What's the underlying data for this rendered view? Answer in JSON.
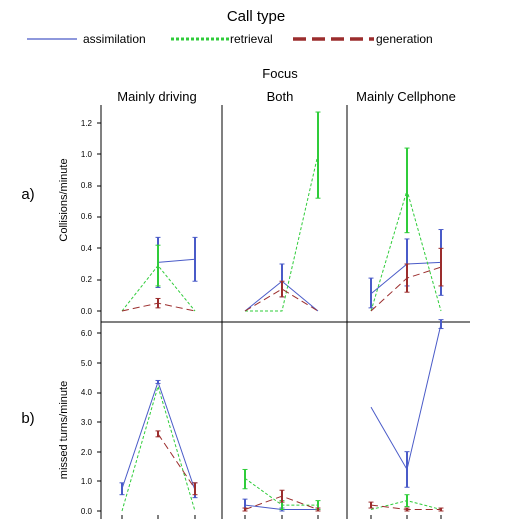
{
  "legend": {
    "title": "Call type",
    "items": [
      {
        "label": "assimilation",
        "color": "#4a5bc8",
        "style": "solid"
      },
      {
        "label": "retrieval",
        "color": "#2fcc3a",
        "style": "dotted"
      },
      {
        "label": "generation",
        "color": "#9b2d2d",
        "style": "dashed"
      }
    ]
  },
  "facet": {
    "title": "Focus",
    "columns": [
      "Mainly driving",
      "Both",
      "Mainly Cellphone"
    ]
  },
  "rows": [
    {
      "letter": "a)",
      "ylabel": "Collisions/minute",
      "ticks": [
        "0.0",
        "0.2",
        "0.4",
        "0.6",
        "0.8",
        "1.0",
        "1.2"
      ]
    },
    {
      "letter": "b)",
      "ylabel": "missed turns/minute",
      "ticks": [
        "0.0",
        "1.0",
        "2.0",
        "3.0",
        "4.0",
        "5.0",
        "6.0"
      ]
    }
  ],
  "chart_data": [
    {
      "type": "line",
      "title": "Collisions/minute",
      "ylabel": "Collisions/minute",
      "ylim": [
        0,
        1.3
      ],
      "facets": [
        "Mainly driving",
        "Both",
        "Mainly Cellphone"
      ],
      "panels": [
        {
          "facet": "Mainly driving",
          "series": [
            {
              "name": "assimilation",
              "values": [
                null,
                0.31,
                0.33
              ],
              "lo": [
                null,
                0.15,
                0.19
              ],
              "hi": [
                null,
                0.47,
                0.47
              ]
            },
            {
              "name": "retrieval",
              "values": [
                0.0,
                0.29,
                0.0
              ],
              "lo": [
                null,
                0.16,
                null
              ],
              "hi": [
                null,
                0.42,
                null
              ]
            },
            {
              "name": "generation",
              "values": [
                0.0,
                0.05,
                0.0
              ],
              "lo": [
                null,
                0.02,
                null
              ],
              "hi": [
                null,
                0.08,
                null
              ]
            }
          ]
        },
        {
          "facet": "Both",
          "series": [
            {
              "name": "assimilation",
              "values": [
                0.0,
                0.19,
                0.0
              ],
              "lo": [
                null,
                0.09,
                null
              ],
              "hi": [
                null,
                0.3,
                null
              ]
            },
            {
              "name": "retrieval",
              "values": [
                0.0,
                0.0,
                1.0
              ],
              "lo": [
                null,
                null,
                0.72
              ],
              "hi": [
                null,
                null,
                1.27
              ]
            },
            {
              "name": "generation",
              "values": [
                0.0,
                0.14,
                0.0
              ],
              "lo": [
                null,
                0.09,
                null
              ],
              "hi": [
                null,
                0.19,
                null
              ]
            }
          ]
        },
        {
          "facet": "Mainly Cellphone",
          "series": [
            {
              "name": "assimilation",
              "values": [
                0.11,
                0.3,
                0.31
              ],
              "lo": [
                0.02,
                0.16,
                0.1
              ],
              "hi": [
                0.21,
                0.46,
                0.52
              ]
            },
            {
              "name": "retrieval",
              "values": [
                0.0,
                0.77,
                0.0
              ],
              "lo": [
                null,
                0.5,
                null
              ],
              "hi": [
                null,
                1.04,
                null
              ]
            },
            {
              "name": "generation",
              "values": [
                0.0,
                0.21,
                0.28
              ],
              "lo": [
                null,
                0.12,
                0.16
              ],
              "hi": [
                null,
                0.3,
                0.4
              ]
            }
          ]
        }
      ]
    },
    {
      "type": "line",
      "title": "missed turns/minute",
      "ylabel": "missed turns/minute",
      "ylim": [
        0,
        6.4
      ],
      "facets": [
        "Mainly driving",
        "Both",
        "Mainly Cellphone"
      ],
      "panels": [
        {
          "facet": "Mainly driving",
          "series": [
            {
              "name": "assimilation",
              "values": [
                0.75,
                4.35,
                0.7
              ],
              "lo": [
                0.55,
                4.3,
                0.45
              ],
              "hi": [
                0.95,
                4.4,
                0.95
              ]
            },
            {
              "name": "retrieval",
              "values": [
                0.0,
                4.2,
                0.0
              ],
              "lo": [
                null,
                null,
                null
              ],
              "hi": [
                null,
                null,
                null
              ]
            },
            {
              "name": "generation",
              "values": [
                null,
                2.6,
                0.75
              ],
              "lo": [
                null,
                2.5,
                0.55
              ],
              "hi": [
                null,
                2.7,
                0.95
              ]
            }
          ]
        },
        {
          "facet": "Both",
          "series": [
            {
              "name": "assimilation",
              "values": [
                0.2,
                0.05,
                0.05
              ],
              "lo": [
                0.0,
                0.0,
                0.0
              ],
              "hi": [
                0.4,
                0.1,
                0.1
              ]
            },
            {
              "name": "retrieval",
              "values": [
                1.1,
                0.2,
                0.2
              ],
              "lo": [
                0.75,
                0.05,
                0.05
              ],
              "hi": [
                1.4,
                0.35,
                0.35
              ]
            },
            {
              "name": "generation",
              "values": [
                0.05,
                0.5,
                0.05
              ],
              "lo": [
                0.0,
                0.3,
                0.0
              ],
              "hi": [
                0.1,
                0.7,
                0.1
              ]
            }
          ]
        },
        {
          "facet": "Mainly Cellphone",
          "series": [
            {
              "name": "assimilation",
              "values": [
                3.5,
                1.4,
                6.3
              ],
              "lo": [
                null,
                0.8,
                6.15
              ],
              "hi": [
                null,
                2.0,
                6.45
              ]
            },
            {
              "name": "retrieval",
              "values": [
                0.05,
                0.35,
                0.05
              ],
              "lo": [
                null,
                0.15,
                null
              ],
              "hi": [
                null,
                0.55,
                null
              ]
            },
            {
              "name": "generation",
              "values": [
                0.2,
                0.05,
                0.05
              ],
              "lo": [
                0.1,
                0.0,
                0.0
              ],
              "hi": [
                0.3,
                0.1,
                0.1
              ]
            }
          ]
        }
      ]
    }
  ]
}
